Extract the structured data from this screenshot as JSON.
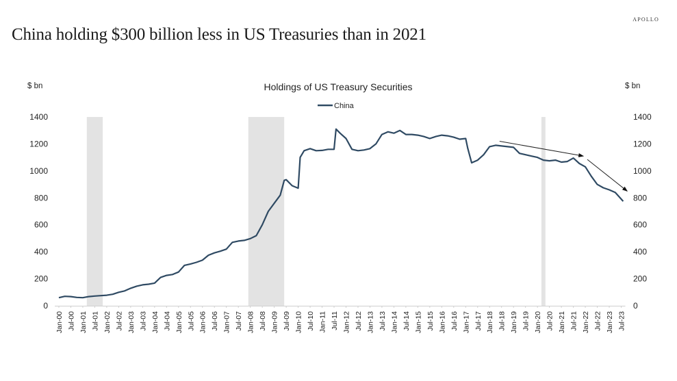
{
  "brand": "APOLLO",
  "headline": "China holding $300 billion less in US Treasuries than in 2021",
  "chart_data": {
    "type": "line",
    "title": "Holdings of US Treasury Securities",
    "ylabel_left": "$ bn",
    "ylabel_right": "$ bn",
    "ylim": [
      0,
      1400
    ],
    "yticks": [
      0,
      200,
      400,
      600,
      800,
      1000,
      1200,
      1400
    ],
    "ytick_labels": [
      "0",
      "200",
      "400",
      "600",
      "800",
      "1000",
      "1200",
      "1400"
    ],
    "xlim_months": [
      0,
      283
    ],
    "xtick_labels": [
      "Jan-00",
      "Jul-00",
      "Jan-01",
      "Jul-01",
      "Jan-02",
      "Jul-02",
      "Jan-03",
      "Jul-03",
      "Jan-04",
      "Jul-04",
      "Jan-05",
      "Jul-05",
      "Jan-06",
      "Jul-06",
      "Jan-07",
      "Jul-07",
      "Jan-08",
      "Jul-08",
      "Jan-09",
      "Jul-09",
      "Jan-10",
      "Jul-10",
      "Jan-11",
      "Jul-11",
      "Jan-12",
      "Jul-12",
      "Jan-13",
      "Jul-13",
      "Jan-14",
      "Jul-14",
      "Jan-15",
      "Jul-15",
      "Jan-16",
      "Jul-16",
      "Jan-17",
      "Jul-17",
      "Jan-18",
      "Jul-18",
      "Jan-19",
      "Jul-19",
      "Jan-20",
      "Jul-20",
      "Jan-21",
      "Jul-21",
      "Jan-22",
      "Jul-22",
      "Jan-23",
      "Jul-23"
    ],
    "legend": {
      "entries": [
        "China"
      ],
      "placement": "top-center"
    },
    "grid": false,
    "recessions_months": [
      [
        14,
        22
      ],
      [
        95,
        113
      ],
      [
        242,
        244
      ]
    ],
    "annotations": {
      "arrows": [
        {
          "from_month": 221,
          "from_value": 1220,
          "to_month": 263,
          "to_value": 1110
        },
        {
          "from_month": 265,
          "from_value": 1085,
          "to_month": 285,
          "to_value": 850
        }
      ]
    },
    "series": [
      {
        "name": "China",
        "color": "#2f4a63",
        "x_months": [
          0,
          3,
          6,
          9,
          12,
          15,
          18,
          21,
          24,
          27,
          30,
          33,
          36,
          39,
          42,
          45,
          48,
          51,
          54,
          57,
          60,
          63,
          66,
          69,
          72,
          75,
          78,
          81,
          84,
          87,
          90,
          93,
          96,
          99,
          102,
          105,
          108,
          111,
          113,
          114,
          117,
          120,
          121,
          123,
          126,
          129,
          132,
          135,
          138,
          139,
          141,
          144,
          147,
          150,
          153,
          156,
          159,
          162,
          165,
          168,
          171,
          174,
          177,
          180,
          183,
          186,
          189,
          192,
          195,
          198,
          201,
          204,
          205,
          207,
          210,
          213,
          216,
          219,
          222,
          225,
          228,
          231,
          234,
          237,
          240,
          243,
          246,
          249,
          252,
          255,
          258,
          261,
          264,
          267,
          270,
          273,
          276,
          279,
          283
        ],
        "values": [
          60,
          70,
          68,
          62,
          60,
          68,
          72,
          75,
          78,
          85,
          100,
          110,
          130,
          145,
          155,
          160,
          168,
          210,
          225,
          232,
          250,
          300,
          310,
          322,
          338,
          375,
          392,
          405,
          420,
          470,
          480,
          485,
          498,
          520,
          600,
          700,
          760,
          820,
          930,
          935,
          890,
          872,
          1100,
          1150,
          1165,
          1150,
          1152,
          1160,
          1160,
          1310,
          1280,
          1240,
          1160,
          1150,
          1155,
          1165,
          1200,
          1270,
          1290,
          1280,
          1300,
          1270,
          1270,
          1265,
          1255,
          1240,
          1255,
          1265,
          1260,
          1250,
          1235,
          1240,
          1170,
          1060,
          1080,
          1120,
          1180,
          1190,
          1185,
          1180,
          1175,
          1130,
          1120,
          1110,
          1100,
          1080,
          1075,
          1080,
          1065,
          1070,
          1095,
          1055,
          1030,
          960,
          900,
          875,
          860,
          840,
          775
        ]
      }
    ]
  }
}
